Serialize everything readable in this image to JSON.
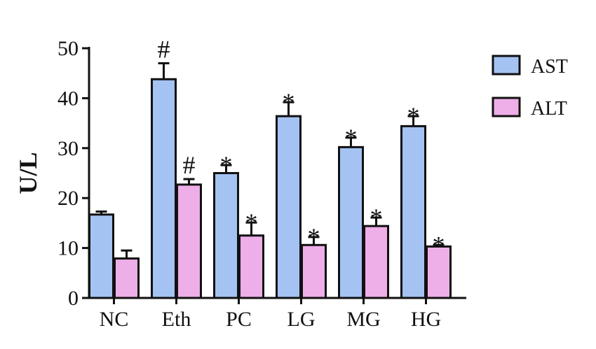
{
  "chart_data": {
    "type": "bar",
    "ylabel": "U/L",
    "ylim": [
      0,
      50
    ],
    "yticks": [
      0,
      10,
      20,
      30,
      40,
      50
    ],
    "categories": [
      "NC",
      "Eth",
      "PC",
      "LG",
      "MG",
      "HG"
    ],
    "series": [
      {
        "name": "AST",
        "color": "#a4c3f3",
        "values": [
          16.7,
          43.8,
          25.0,
          36.4,
          30.2,
          34.4
        ],
        "errors": [
          0.6,
          3.2,
          1.6,
          2.8,
          1.9,
          2.0
        ],
        "annotations": [
          "",
          "#",
          "*",
          "*",
          "*",
          "*"
        ]
      },
      {
        "name": "ALT",
        "color": "#eeaee8",
        "values": [
          7.9,
          22.7,
          12.5,
          10.6,
          14.4,
          10.3
        ],
        "errors": [
          1.6,
          1.1,
          2.6,
          1.6,
          1.7,
          0.3
        ],
        "annotations": [
          "",
          "#",
          "*",
          "*",
          "*",
          "*"
        ]
      }
    ],
    "legend": "top-right"
  }
}
